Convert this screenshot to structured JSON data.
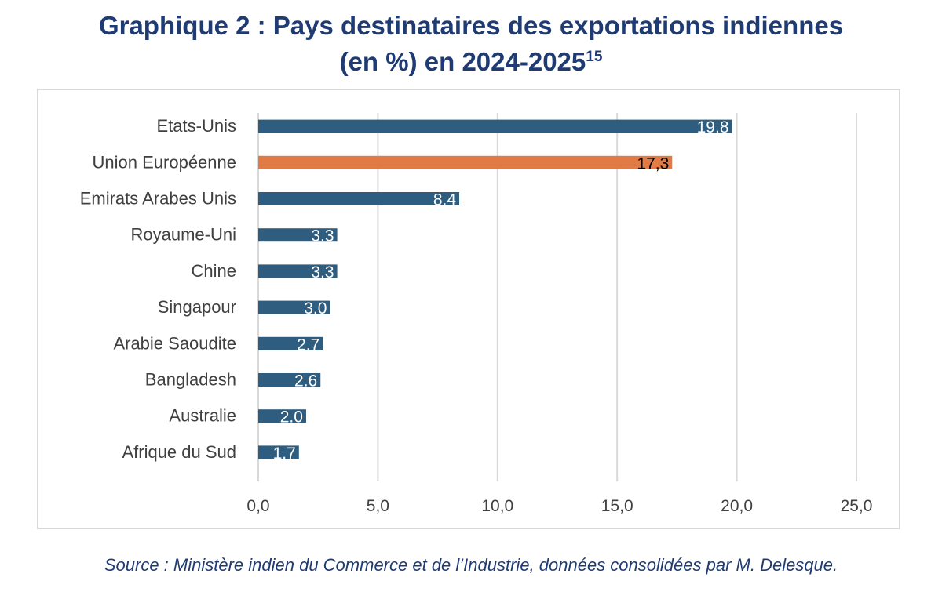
{
  "title": {
    "main": "Graphique 2 : Pays destinataires des exportations indiennes",
    "line2": "(en %) en 2024-2025",
    "footnote": "15"
  },
  "source": "Source : Ministère indien du Commerce et de l’Industrie, données consolidées par M. Delesque.",
  "colors": {
    "default_bar": "#2e5d7f",
    "highlight_bar": "#e07b45",
    "grid": "#d9d9d9",
    "category_text": "#404040",
    "title": "#1f3b73"
  },
  "chart_data": {
    "type": "bar",
    "orientation": "horizontal",
    "categories": [
      "Etats-Unis",
      "Union Européenne",
      "Emirats Arabes Unis",
      "Royaume-Uni",
      "Chine",
      "Singapour",
      "Arabie Saoudite",
      "Bangladesh",
      "Australie",
      "Afrique du Sud"
    ],
    "values": [
      19.8,
      17.3,
      8.4,
      3.3,
      3.3,
      3.0,
      2.7,
      2.6,
      2.0,
      1.7
    ],
    "data_labels": [
      "19.8",
      "17,3",
      "8.4",
      "3.3",
      "3.3",
      "3.0",
      "2.7",
      "2.6",
      "2.0",
      "1.7"
    ],
    "highlight_index": 1,
    "xlim": [
      0,
      25
    ],
    "xticks": [
      0,
      5,
      10,
      15,
      20,
      25
    ],
    "xtick_labels": [
      "0,0",
      "5,0",
      "10,0",
      "15,0",
      "20,0",
      "25,0"
    ],
    "grid": true,
    "legend": "none",
    "xlabel": "",
    "ylabel": ""
  }
}
